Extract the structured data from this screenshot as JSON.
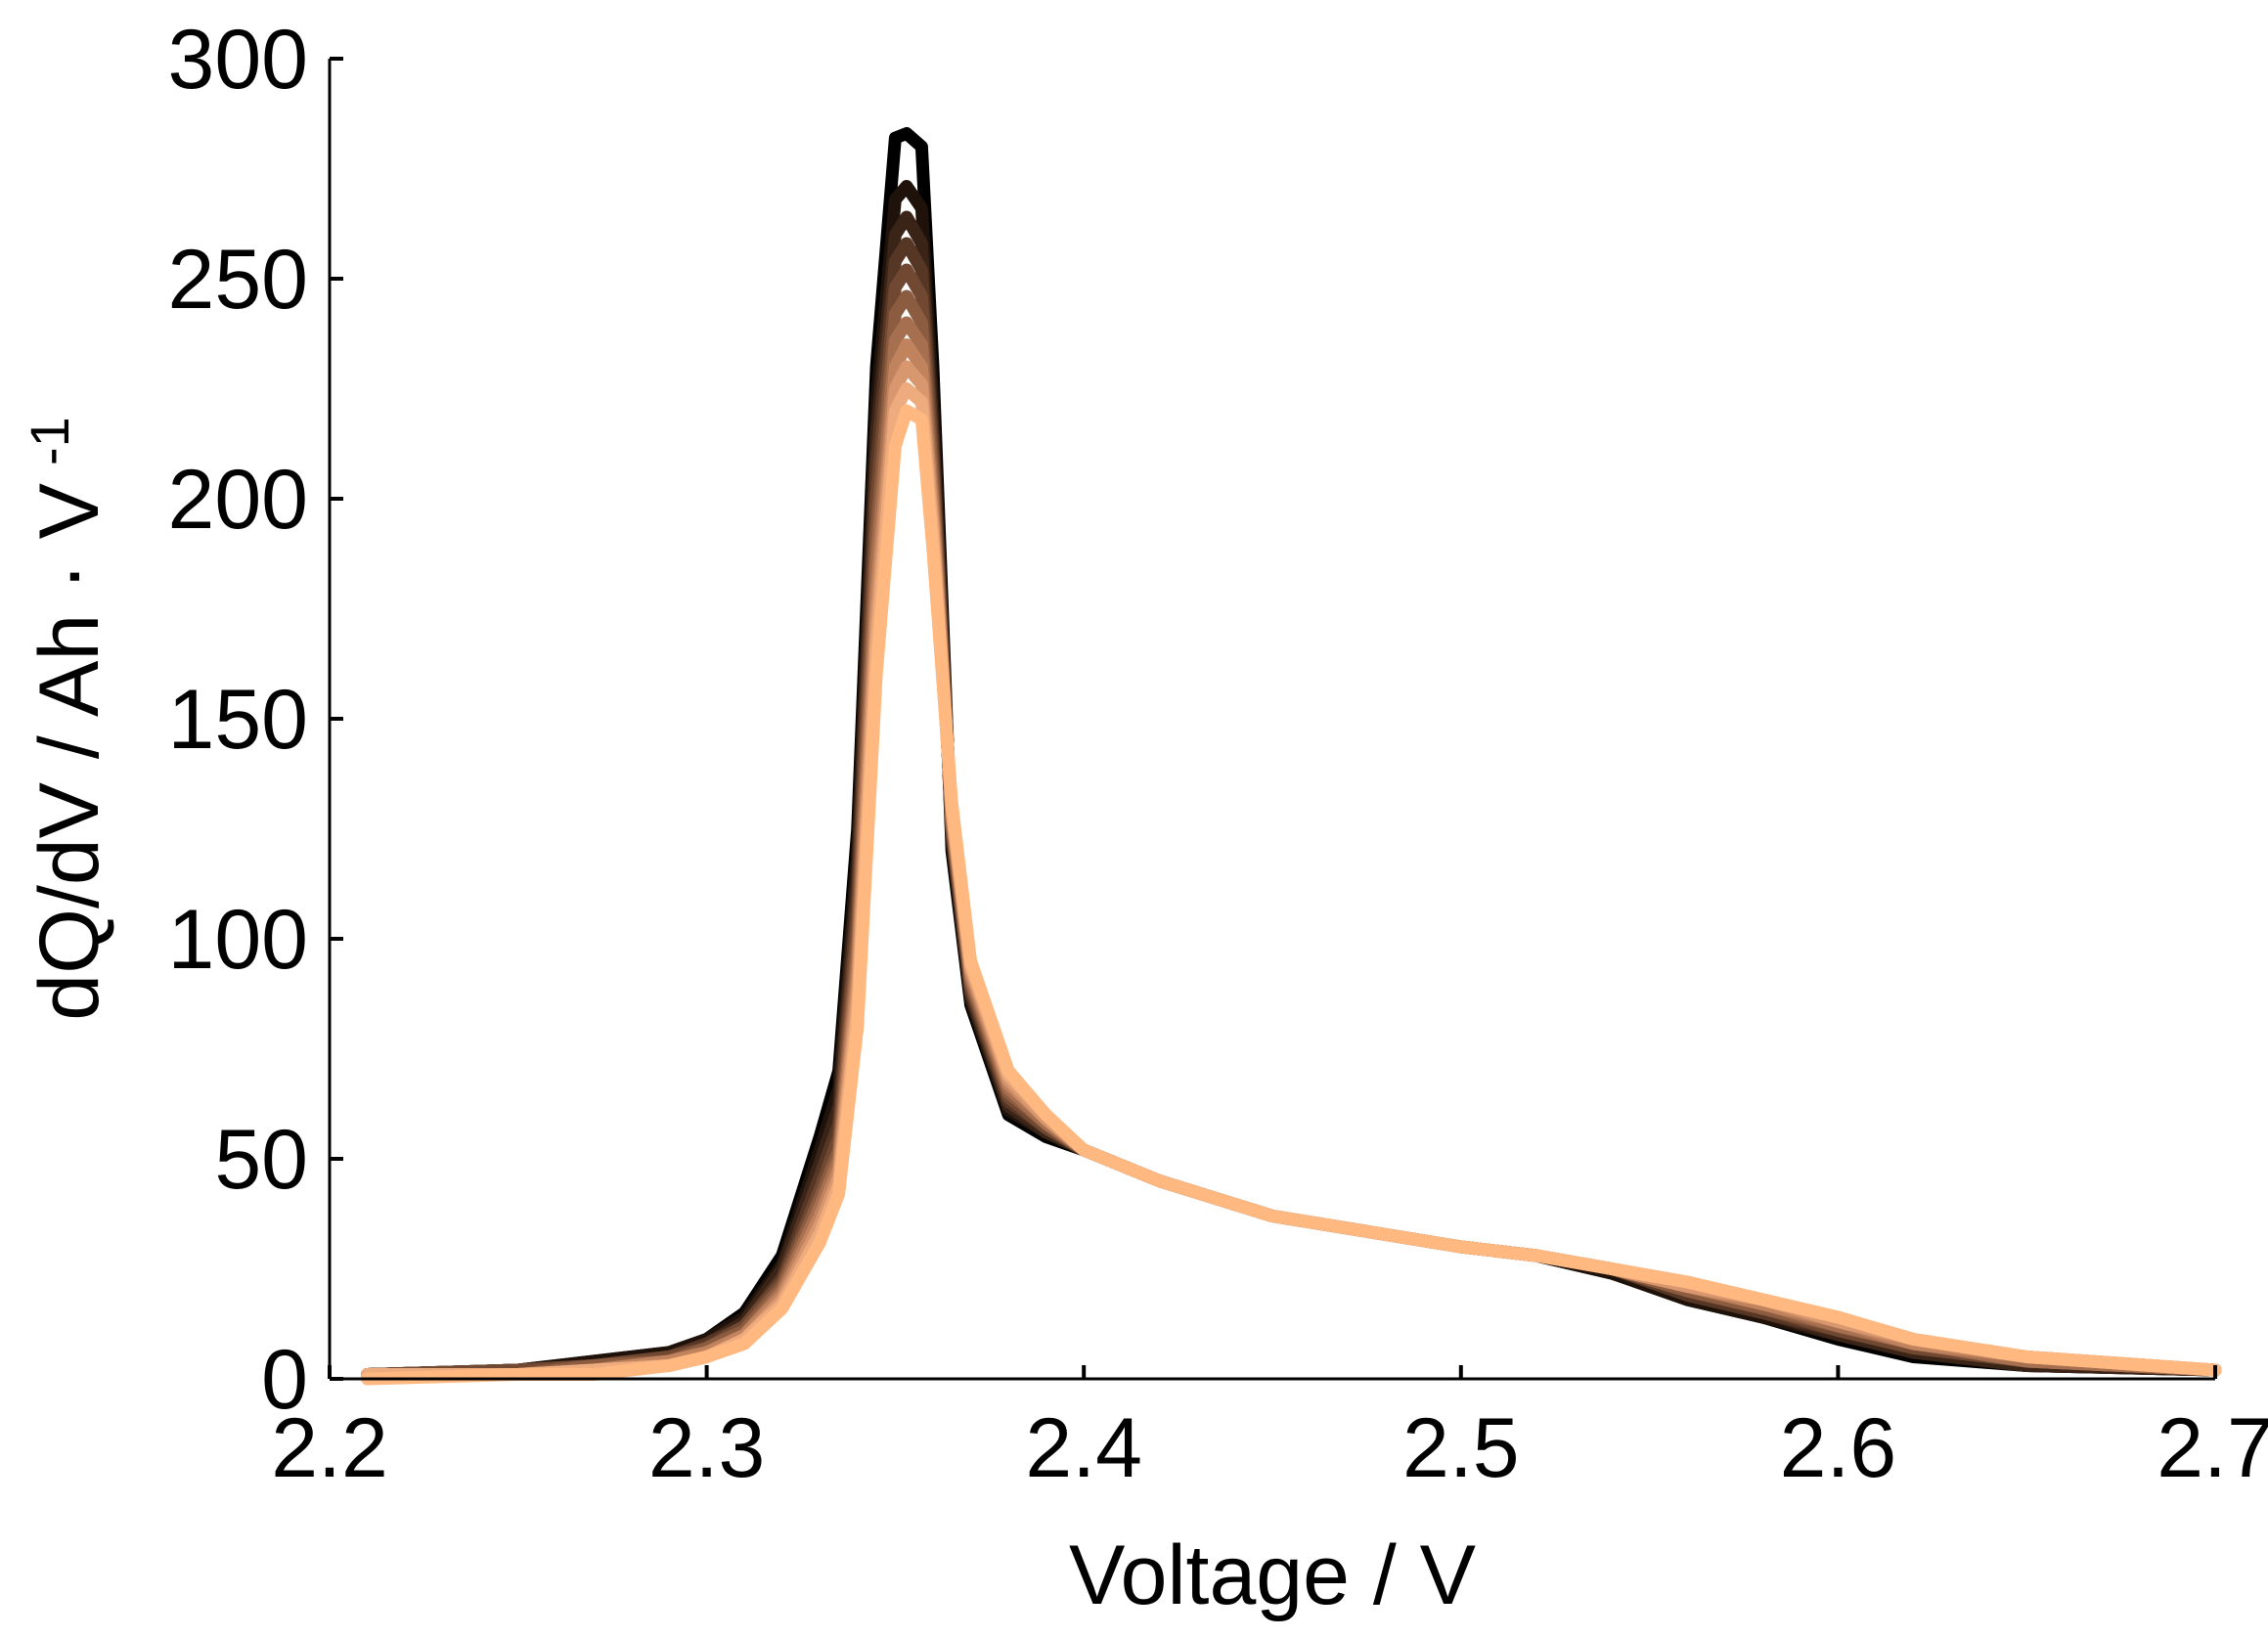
{
  "chart_data": {
    "type": "line",
    "title": "",
    "xlabel": "Voltage / V",
    "ylabel": "dQ/dV / Ah · V",
    "ylabel_exponent": "-1",
    "xlim": [
      2.2,
      2.7
    ],
    "ylim": [
      0,
      300
    ],
    "xticks": [
      "2.2",
      "2.3",
      "2.4",
      "2.5",
      "2.6",
      "2.7"
    ],
    "yticks": [
      "0",
      "50",
      "100",
      "150",
      "200",
      "250",
      "300"
    ],
    "grid": false,
    "legend": "none",
    "colormap": [
      "#000000",
      "#1f120b",
      "#3a2417",
      "#563624",
      "#714932",
      "#8c5c40",
      "#a66f4f",
      "#c0835e",
      "#d8976e",
      "#eeab7e",
      "#ffb87f"
    ],
    "series": [
      {
        "color": "#000000",
        "x": [
          2.21,
          2.25,
          2.27,
          2.29,
          2.3,
          2.31,
          2.32,
          2.33,
          2.335,
          2.34,
          2.345,
          2.35,
          2.353,
          2.357,
          2.36,
          2.365,
          2.37,
          2.38,
          2.39,
          2.4,
          2.42,
          2.45,
          2.5,
          2.52,
          2.54,
          2.56,
          2.58,
          2.6,
          2.62,
          2.65,
          2.7
        ],
        "y": [
          1,
          2,
          4,
          6,
          9,
          15,
          28,
          55,
          70,
          125,
          230,
          282,
          283,
          280,
          230,
          120,
          85,
          60,
          55,
          52,
          45,
          37,
          30,
          28,
          24,
          18,
          14,
          9,
          5,
          3,
          2
        ]
      },
      {
        "color": "#1f120b",
        "x": [
          2.21,
          2.25,
          2.27,
          2.29,
          2.3,
          2.31,
          2.32,
          2.33,
          2.335,
          2.34,
          2.345,
          2.35,
          2.353,
          2.357,
          2.36,
          2.365,
          2.37,
          2.38,
          2.39,
          2.4,
          2.42,
          2.45,
          2.5,
          2.52,
          2.54,
          2.56,
          2.58,
          2.6,
          2.62,
          2.65,
          2.7
        ],
        "y": [
          1,
          2,
          4,
          6,
          9,
          14,
          26,
          52,
          66,
          120,
          222,
          268,
          271,
          266,
          222,
          122,
          86,
          61,
          56,
          52,
          45,
          37,
          30,
          28,
          24,
          18,
          14,
          10,
          6,
          3,
          2
        ]
      },
      {
        "color": "#3a2417",
        "x": [
          2.21,
          2.25,
          2.27,
          2.29,
          2.3,
          2.31,
          2.32,
          2.33,
          2.335,
          2.34,
          2.345,
          2.35,
          2.353,
          2.357,
          2.36,
          2.365,
          2.37,
          2.38,
          2.39,
          2.4,
          2.42,
          2.45,
          2.5,
          2.52,
          2.54,
          2.56,
          2.58,
          2.6,
          2.62,
          2.65,
          2.7
        ],
        "y": [
          1,
          2,
          3,
          5,
          8,
          13,
          25,
          49,
          62,
          115,
          215,
          260,
          264,
          258,
          216,
          123,
          87,
          62,
          56,
          52,
          45,
          37,
          30,
          28,
          25,
          19,
          15,
          10,
          6,
          3,
          2
        ]
      },
      {
        "color": "#563624",
        "x": [
          2.21,
          2.25,
          2.27,
          2.29,
          2.3,
          2.31,
          2.32,
          2.33,
          2.335,
          2.34,
          2.345,
          2.35,
          2.353,
          2.357,
          2.36,
          2.365,
          2.37,
          2.38,
          2.39,
          2.4,
          2.42,
          2.45,
          2.5,
          2.52,
          2.54,
          2.56,
          2.58,
          2.6,
          2.62,
          2.65,
          2.7
        ],
        "y": [
          1,
          2,
          3,
          5,
          8,
          12,
          23,
          46,
          58,
          110,
          208,
          254,
          258,
          252,
          212,
          124,
          88,
          63,
          57,
          52,
          45,
          37,
          30,
          28,
          25,
          19,
          15,
          11,
          7,
          4,
          2
        ]
      },
      {
        "color": "#714932",
        "x": [
          2.21,
          2.25,
          2.27,
          2.29,
          2.3,
          2.31,
          2.32,
          2.33,
          2.335,
          2.34,
          2.345,
          2.35,
          2.353,
          2.357,
          2.36,
          2.365,
          2.37,
          2.38,
          2.39,
          2.4,
          2.42,
          2.45,
          2.5,
          2.52,
          2.54,
          2.56,
          2.58,
          2.6,
          2.62,
          2.65,
          2.7
        ],
        "y": [
          1,
          2,
          3,
          5,
          7,
          12,
          22,
          43,
          55,
          105,
          200,
          248,
          252,
          246,
          208,
          125,
          89,
          64,
          57,
          52,
          45,
          37,
          30,
          28,
          25,
          20,
          16,
          11,
          7,
          4,
          2
        ]
      },
      {
        "color": "#8c5c40",
        "x": [
          2.21,
          2.25,
          2.27,
          2.29,
          2.3,
          2.31,
          2.32,
          2.33,
          2.335,
          2.34,
          2.345,
          2.35,
          2.353,
          2.357,
          2.36,
          2.365,
          2.37,
          2.38,
          2.39,
          2.4,
          2.42,
          2.45,
          2.5,
          2.52,
          2.54,
          2.56,
          2.58,
          2.6,
          2.62,
          2.65,
          2.7
        ],
        "y": [
          1,
          1,
          3,
          4,
          7,
          11,
          21,
          41,
          52,
          100,
          192,
          242,
          246,
          240,
          204,
          126,
          90,
          65,
          58,
          52,
          45,
          37,
          30,
          28,
          25,
          20,
          16,
          12,
          8,
          4,
          2
        ]
      },
      {
        "color": "#a66f4f",
        "x": [
          2.21,
          2.25,
          2.27,
          2.29,
          2.3,
          2.31,
          2.32,
          2.33,
          2.335,
          2.34,
          2.345,
          2.35,
          2.353,
          2.357,
          2.36,
          2.365,
          2.37,
          2.38,
          2.39,
          2.4,
          2.42,
          2.45,
          2.5,
          2.52,
          2.54,
          2.56,
          2.58,
          2.6,
          2.62,
          2.65,
          2.7
        ],
        "y": [
          1,
          1,
          2,
          4,
          6,
          10,
          20,
          39,
          50,
          96,
          185,
          236,
          240,
          235,
          200,
          127,
          91,
          66,
          58,
          52,
          45,
          37,
          30,
          28,
          25,
          21,
          17,
          12,
          8,
          4,
          2
        ]
      },
      {
        "color": "#c0835e",
        "x": [
          2.21,
          2.25,
          2.27,
          2.29,
          2.3,
          2.31,
          2.32,
          2.33,
          2.335,
          2.34,
          2.345,
          2.35,
          2.353,
          2.357,
          2.36,
          2.365,
          2.37,
          2.38,
          2.39,
          2.4,
          2.42,
          2.45,
          2.5,
          2.52,
          2.54,
          2.56,
          2.58,
          2.6,
          2.62,
          2.65,
          2.7
        ],
        "y": [
          1,
          1,
          2,
          4,
          6,
          10,
          19,
          37,
          48,
          92,
          178,
          230,
          235,
          230,
          197,
          128,
          92,
          67,
          59,
          52,
          45,
          37,
          30,
          28,
          25,
          21,
          17,
          13,
          8,
          5,
          2
        ]
      },
      {
        "color": "#d8976e",
        "x": [
          2.21,
          2.25,
          2.27,
          2.29,
          2.3,
          2.31,
          2.32,
          2.33,
          2.335,
          2.34,
          2.345,
          2.35,
          2.353,
          2.357,
          2.36,
          2.365,
          2.37,
          2.38,
          2.39,
          2.4,
          2.42,
          2.45,
          2.5,
          2.52,
          2.54,
          2.56,
          2.58,
          2.6,
          2.62,
          2.65,
          2.7
        ],
        "y": [
          1,
          1,
          2,
          3,
          5,
          9,
          18,
          35,
          46,
          88,
          172,
          225,
          230,
          226,
          194,
          129,
          93,
          68,
          59,
          52,
          45,
          37,
          30,
          28,
          25,
          21,
          18,
          13,
          9,
          5,
          2
        ]
      },
      {
        "color": "#eeab7e",
        "x": [
          2.21,
          2.25,
          2.27,
          2.29,
          2.3,
          2.31,
          2.32,
          2.33,
          2.335,
          2.34,
          2.345,
          2.35,
          2.353,
          2.357,
          2.36,
          2.365,
          2.37,
          2.38,
          2.39,
          2.4,
          2.42,
          2.45,
          2.5,
          2.52,
          2.54,
          2.56,
          2.58,
          2.6,
          2.62,
          2.65,
          2.7
        ],
        "y": [
          1,
          1,
          2,
          3,
          5,
          9,
          17,
          33,
          44,
          84,
          166,
          220,
          225,
          222,
          191,
          130,
          94,
          69,
          60,
          52,
          45,
          37,
          30,
          28,
          25,
          22,
          18,
          14,
          9,
          5,
          2
        ]
      },
      {
        "color": "#ffb87f",
        "x": [
          2.21,
          2.25,
          2.27,
          2.29,
          2.3,
          2.31,
          2.32,
          2.33,
          2.335,
          2.34,
          2.345,
          2.35,
          2.353,
          2.357,
          2.36,
          2.365,
          2.37,
          2.38,
          2.39,
          2.4,
          2.42,
          2.45,
          2.5,
          2.52,
          2.54,
          2.56,
          2.58,
          2.6,
          2.62,
          2.65,
          2.7
        ],
        "y": [
          0,
          1,
          1,
          3,
          5,
          8,
          16,
          31,
          42,
          80,
          160,
          212,
          220,
          218,
          188,
          131,
          95,
          70,
          60,
          52,
          45,
          37,
          30,
          28,
          25,
          22,
          18,
          14,
          9,
          5,
          2
        ]
      }
    ]
  }
}
